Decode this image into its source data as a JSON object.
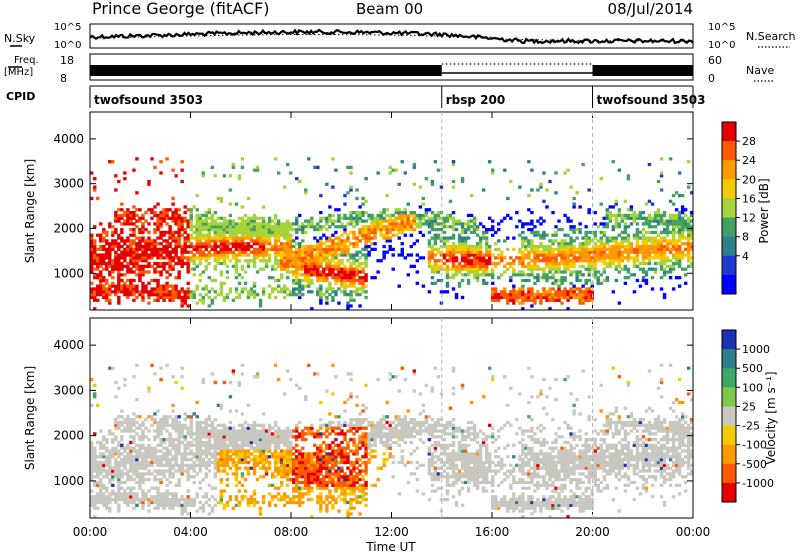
{
  "header": {
    "station": "Prince George (fitACF)",
    "beam": "Beam 00",
    "date": "08/Jul/2014"
  },
  "strips": {
    "nsky": {
      "label": "N.Sky",
      "ticks": [
        "10^5",
        "10^0"
      ]
    },
    "nsearch": {
      "label": "N.Search",
      "ticks": [
        "10^5",
        "10^0"
      ]
    },
    "freq": {
      "label": "Freq.",
      "unit": "[MHz]",
      "ticks": [
        "18",
        "8"
      ]
    },
    "nave": {
      "label": "Nave",
      "ticks": [
        "60",
        "0"
      ]
    },
    "cpid": {
      "label": "CPID",
      "segments": [
        {
          "name": "twofsound 3503",
          "start": 0,
          "end": 14
        },
        {
          "name": "rbsp 200",
          "start": 14,
          "end": 20
        },
        {
          "name": "twofsound 3503",
          "start": 20,
          "end": 24
        }
      ]
    }
  },
  "chart_data": [
    {
      "type": "heatmap",
      "ylabel": "Slant Range [km]",
      "xlim": [
        0,
        24
      ],
      "ylim": [
        180,
        4600
      ],
      "yticks": [
        "1000",
        "2000",
        "3000",
        "4000"
      ],
      "colorbar": {
        "label": "Power [dB]",
        "ticks": [
          "28",
          "24",
          "20",
          "16",
          "12",
          "8",
          "4"
        ],
        "colors": [
          "#e50000",
          "#ff5a00",
          "#ff9900",
          "#f2cc00",
          "#a6d33c",
          "#41a064",
          "#2e7f8c",
          "#1f3ad0",
          "#0000ff"
        ]
      }
    },
    {
      "type": "heatmap",
      "ylabel": "Slant Range [km]",
      "xlabel": "Time UT",
      "xlim": [
        0,
        24
      ],
      "ylim": [
        180,
        4600
      ],
      "yticks": [
        "1000",
        "2000",
        "3000",
        "4000"
      ],
      "xticks": [
        "00:00",
        "04:00",
        "08:00",
        "12:00",
        "16:00",
        "20:00",
        "00:00"
      ],
      "colorbar": {
        "label": "Velocity [m s⁻¹]",
        "ticks": [
          "1000",
          "500",
          "100",
          "25",
          "-25",
          "-100",
          "-500",
          "-1000"
        ],
        "colors": [
          "#1833b8",
          "#2e7f8c",
          "#3ca86a",
          "#7ec84a",
          "#c8c8c0",
          "#f2cc00",
          "#ff9900",
          "#ff5a00",
          "#e50000"
        ]
      }
    }
  ]
}
